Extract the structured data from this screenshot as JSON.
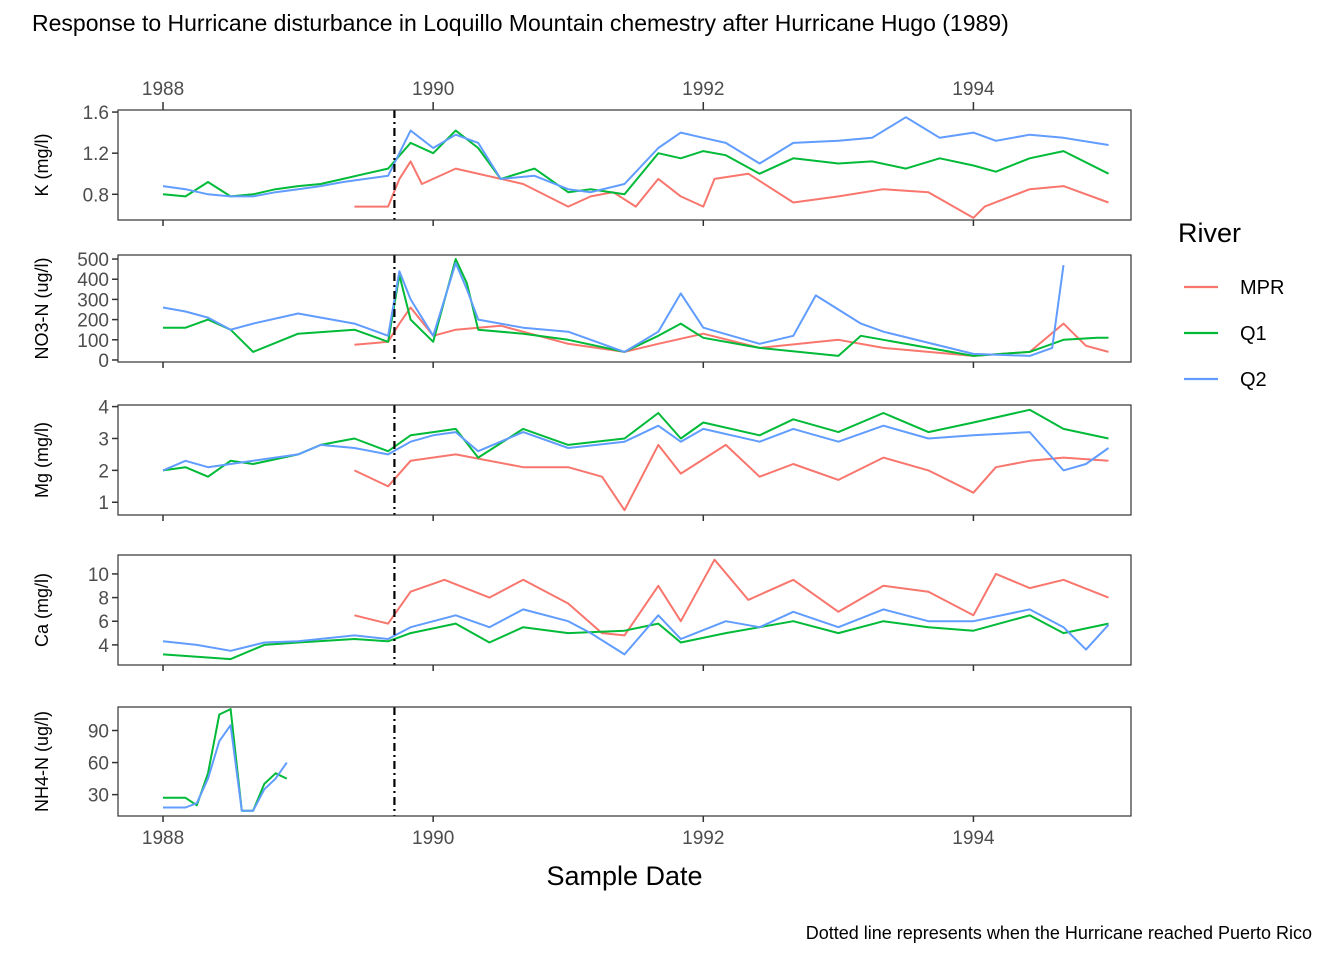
{
  "title": "Response to Hurricane disturbance in Loquillo Mountain chemestry after Hurricane Hugo (1989)",
  "caption": "Dotted line represents when the Hurricane reached Puerto Rico",
  "chart_data": {
    "type": "line",
    "xlabel": "Sample Date",
    "x_ticks": [
      "1988",
      "1990",
      "1992",
      "1994"
    ],
    "xlim": [
      "1987-09",
      "1995-03"
    ],
    "hurricane_date": "1989-09-18",
    "legend": {
      "title": "River",
      "entries": [
        "MPR",
        "Q1",
        "Q2"
      ],
      "position": "right"
    },
    "colors": {
      "MPR": "#F8766D",
      "Q1": "#00BA38",
      "Q2": "#619CFF"
    },
    "grid": false,
    "panels": [
      {
        "ylabel": "K (mg/l)",
        "ylim": [
          0.55,
          1.62
        ],
        "y_ticks": [
          "0.8",
          "1.2",
          "1.6"
        ],
        "series": [
          {
            "name": "MPR",
            "x": [
              "1989-06",
              "1989-09",
              "1989-10",
              "1989-11",
              "1989-12",
              "1990-03",
              "1990-09",
              "1991-01",
              "1991-03",
              "1991-05",
              "1991-07",
              "1991-09",
              "1991-11",
              "1992-01",
              "1992-02",
              "1992-05",
              "1992-09",
              "1993-01",
              "1993-05",
              "1993-09",
              "1994-01",
              "1994-02",
              "1994-06",
              "1994-09",
              "1995-01"
            ],
            "y": [
              0.68,
              0.68,
              0.95,
              1.12,
              0.9,
              1.05,
              0.9,
              0.68,
              0.78,
              0.82,
              0.68,
              0.95,
              0.78,
              0.68,
              0.95,
              1.0,
              0.72,
              0.78,
              0.85,
              0.82,
              0.57,
              0.68,
              0.85,
              0.88,
              0.72
            ]
          },
          {
            "name": "Q1",
            "x": [
              "1988-01",
              "1988-03",
              "1988-05",
              "1988-07",
              "1988-09",
              "1988-11",
              "1989-01",
              "1989-03",
              "1989-05",
              "1989-07",
              "1989-09",
              "1989-11",
              "1990-01",
              "1990-03",
              "1990-05",
              "1990-07",
              "1990-10",
              "1991-01",
              "1991-03",
              "1991-06",
              "1991-09",
              "1991-11",
              "1992-01",
              "1992-03",
              "1992-06",
              "1992-09",
              "1993-01",
              "1993-04",
              "1993-07",
              "1993-10",
              "1994-01",
              "1994-03",
              "1994-06",
              "1994-09",
              "1995-01"
            ],
            "y": [
              0.8,
              0.78,
              0.92,
              0.78,
              0.8,
              0.85,
              0.88,
              0.9,
              0.95,
              1.0,
              1.05,
              1.3,
              1.2,
              1.42,
              1.25,
              0.95,
              1.05,
              0.82,
              0.85,
              0.8,
              1.2,
              1.15,
              1.22,
              1.18,
              1.0,
              1.15,
              1.1,
              1.12,
              1.05,
              1.15,
              1.08,
              1.02,
              1.15,
              1.22,
              1.0
            ]
          },
          {
            "name": "Q2",
            "x": [
              "1988-01",
              "1988-03",
              "1988-05",
              "1988-07",
              "1988-09",
              "1988-11",
              "1989-01",
              "1989-03",
              "1989-05",
              "1989-07",
              "1989-09",
              "1989-11",
              "1990-01",
              "1990-03",
              "1990-05",
              "1990-07",
              "1990-10",
              "1991-01",
              "1991-03",
              "1991-06",
              "1991-09",
              "1991-11",
              "1992-01",
              "1992-03",
              "1992-06",
              "1992-09",
              "1993-01",
              "1993-04",
              "1993-07",
              "1993-10",
              "1994-01",
              "1994-03",
              "1994-06",
              "1994-09",
              "1995-01"
            ],
            "y": [
              0.88,
              0.85,
              0.8,
              0.78,
              0.78,
              0.82,
              0.85,
              0.88,
              0.92,
              0.95,
              0.98,
              1.42,
              1.25,
              1.38,
              1.3,
              0.95,
              0.98,
              0.85,
              0.82,
              0.9,
              1.25,
              1.4,
              1.35,
              1.3,
              1.1,
              1.3,
              1.32,
              1.35,
              1.55,
              1.35,
              1.4,
              1.32,
              1.38,
              1.35,
              1.28
            ]
          }
        ]
      },
      {
        "ylabel": "NO3-N (ug/l)",
        "ylim": [
          -10,
          520
        ],
        "y_ticks": [
          "0",
          "100",
          "200",
          "300",
          "400",
          "500"
        ],
        "series": [
          {
            "name": "MPR",
            "x": [
              "1989-06",
              "1989-09",
              "1989-10",
              "1989-11",
              "1990-01",
              "1990-03",
              "1990-07",
              "1991-01",
              "1991-06",
              "1991-09",
              "1992-01",
              "1992-06",
              "1993-01",
              "1993-05",
              "1994-01",
              "1994-06",
              "1994-09",
              "1994-11",
              "1995-01"
            ],
            "y": [
              75,
              90,
              180,
              260,
              120,
              150,
              170,
              80,
              40,
              80,
              130,
              60,
              100,
              60,
              20,
              40,
              180,
              70,
              40
            ]
          },
          {
            "name": "Q1",
            "x": [
              "1988-01",
              "1988-03",
              "1988-05",
              "1988-07",
              "1988-09",
              "1989-01",
              "1989-06",
              "1989-09",
              "1989-10",
              "1989-11",
              "1990-01",
              "1990-03",
              "1990-04",
              "1990-05",
              "1990-09",
              "1991-01",
              "1991-06",
              "1991-09",
              "1991-11",
              "1992-01",
              "1992-06",
              "1993-01",
              "1993-03",
              "1993-05",
              "1994-01",
              "1994-06",
              "1994-09",
              "1994-12",
              "1995-01"
            ],
            "y": [
              160,
              160,
              200,
              150,
              40,
              130,
              150,
              90,
              420,
              200,
              90,
              500,
              380,
              150,
              130,
              100,
              40,
              120,
              180,
              110,
              60,
              20,
              120,
              100,
              20,
              40,
              100,
              110,
              110
            ]
          },
          {
            "name": "Q2",
            "x": [
              "1988-01",
              "1988-03",
              "1988-05",
              "1988-07",
              "1988-09",
              "1989-01",
              "1989-06",
              "1989-09",
              "1989-10",
              "1989-11",
              "1990-01",
              "1990-03",
              "1990-04",
              "1990-05",
              "1990-09",
              "1991-01",
              "1991-06",
              "1991-09",
              "1991-11",
              "1992-01",
              "1992-06",
              "1992-09",
              "1992-11",
              "1993-03",
              "1993-05",
              "1994-01",
              "1994-06",
              "1994-08",
              "1994-09"
            ],
            "y": [
              260,
              240,
              210,
              150,
              180,
              230,
              180,
              120,
              440,
              300,
              120,
              480,
              350,
              200,
              160,
              140,
              40,
              140,
              330,
              160,
              80,
              120,
              320,
              180,
              140,
              30,
              20,
              60,
              470
            ]
          }
        ]
      },
      {
        "ylabel": "Mg (mg/l)",
        "ylim": [
          0.6,
          4.05
        ],
        "y_ticks": [
          "1",
          "2",
          "3",
          "4"
        ],
        "series": [
          {
            "name": "MPR",
            "x": [
              "1989-06",
              "1989-09",
              "1989-11",
              "1990-03",
              "1990-09",
              "1991-01",
              "1991-04",
              "1991-06",
              "1991-09",
              "1991-11",
              "1992-03",
              "1992-06",
              "1992-09",
              "1993-01",
              "1993-05",
              "1993-09",
              "1994-01",
              "1994-03",
              "1994-06",
              "1994-09",
              "1995-01"
            ],
            "y": [
              2.0,
              1.5,
              2.3,
              2.5,
              2.1,
              2.1,
              1.8,
              0.75,
              2.8,
              1.9,
              2.8,
              1.8,
              2.2,
              1.7,
              2.4,
              2.0,
              1.3,
              2.1,
              2.3,
              2.4,
              2.3
            ]
          },
          {
            "name": "Q1",
            "x": [
              "1988-01",
              "1988-03",
              "1988-05",
              "1988-07",
              "1988-09",
              "1989-01",
              "1989-03",
              "1989-06",
              "1989-09",
              "1989-11",
              "1990-01",
              "1990-03",
              "1990-05",
              "1990-09",
              "1991-01",
              "1991-06",
              "1991-09",
              "1991-11",
              "1992-01",
              "1992-06",
              "1992-09",
              "1993-01",
              "1993-05",
              "1993-09",
              "1994-01",
              "1994-06",
              "1994-09",
              "1995-01"
            ],
            "y": [
              2.0,
              2.1,
              1.8,
              2.3,
              2.2,
              2.5,
              2.8,
              3.0,
              2.6,
              3.1,
              3.2,
              3.3,
              2.4,
              3.3,
              2.8,
              3.0,
              3.8,
              3.0,
              3.5,
              3.1,
              3.6,
              3.2,
              3.8,
              3.2,
              3.5,
              3.9,
              3.3,
              3.0
            ]
          },
          {
            "name": "Q2",
            "x": [
              "1988-01",
              "1988-03",
              "1988-05",
              "1988-07",
              "1988-09",
              "1989-01",
              "1989-03",
              "1989-06",
              "1989-09",
              "1989-11",
              "1990-01",
              "1990-03",
              "1990-05",
              "1990-09",
              "1991-01",
              "1991-06",
              "1991-09",
              "1991-11",
              "1992-01",
              "1992-06",
              "1992-09",
              "1993-01",
              "1993-05",
              "1993-09",
              "1994-01",
              "1994-06",
              "1994-09",
              "1994-11",
              "1995-01"
            ],
            "y": [
              2.0,
              2.3,
              2.1,
              2.2,
              2.3,
              2.5,
              2.8,
              2.7,
              2.5,
              2.9,
              3.1,
              3.2,
              2.6,
              3.2,
              2.7,
              2.9,
              3.4,
              2.9,
              3.3,
              2.9,
              3.3,
              2.9,
              3.4,
              3.0,
              3.1,
              3.2,
              2.0,
              2.2,
              2.7
            ]
          }
        ]
      },
      {
        "ylabel": "Ca (mg/l)",
        "ylim": [
          2.3,
          11.6
        ],
        "y_ticks": [
          "4",
          "6",
          "8",
          "10"
        ],
        "series": [
          {
            "name": "MPR",
            "x": [
              "1989-06",
              "1989-09",
              "1989-11",
              "1990-02",
              "1990-06",
              "1990-09",
              "1991-01",
              "1991-04",
              "1991-06",
              "1991-09",
              "1991-11",
              "1992-02",
              "1992-05",
              "1992-09",
              "1993-01",
              "1993-05",
              "1993-09",
              "1994-01",
              "1994-03",
              "1994-06",
              "1994-09",
              "1995-01"
            ],
            "y": [
              6.5,
              5.8,
              8.5,
              9.5,
              8.0,
              9.5,
              7.5,
              5.0,
              4.8,
              9.0,
              6.0,
              11.2,
              7.8,
              9.5,
              6.8,
              9.0,
              8.5,
              6.5,
              10.0,
              8.8,
              9.5,
              8.0
            ]
          },
          {
            "name": "Q1",
            "x": [
              "1988-01",
              "1988-04",
              "1988-07",
              "1988-10",
              "1989-01",
              "1989-06",
              "1989-09",
              "1989-11",
              "1990-03",
              "1990-06",
              "1990-09",
              "1991-01",
              "1991-06",
              "1991-09",
              "1991-11",
              "1992-03",
              "1992-06",
              "1992-09",
              "1993-01",
              "1993-05",
              "1993-09",
              "1994-01",
              "1994-06",
              "1994-09",
              "1995-01"
            ],
            "y": [
              3.2,
              3.0,
              2.8,
              4.0,
              4.2,
              4.5,
              4.3,
              5.0,
              5.8,
              4.2,
              5.5,
              5.0,
              5.2,
              5.8,
              4.2,
              5.0,
              5.5,
              6.0,
              5.0,
              6.0,
              5.5,
              5.2,
              6.5,
              5.0,
              5.8
            ]
          },
          {
            "name": "Q2",
            "x": [
              "1988-01",
              "1988-04",
              "1988-07",
              "1988-10",
              "1989-01",
              "1989-06",
              "1989-09",
              "1989-11",
              "1990-03",
              "1990-06",
              "1990-09",
              "1991-01",
              "1991-03",
              "1991-06",
              "1991-09",
              "1991-11",
              "1992-03",
              "1992-06",
              "1992-09",
              "1993-01",
              "1993-05",
              "1993-09",
              "1994-01",
              "1994-06",
              "1994-09",
              "1994-11",
              "1995-01"
            ],
            "y": [
              4.3,
              4.0,
              3.5,
              4.2,
              4.3,
              4.8,
              4.5,
              5.5,
              6.5,
              5.5,
              7.0,
              6.0,
              5.0,
              3.2,
              6.5,
              4.5,
              6.0,
              5.5,
              6.8,
              5.5,
              7.0,
              6.0,
              6.0,
              7.0,
              5.5,
              3.6,
              5.7
            ]
          }
        ]
      },
      {
        "ylabel": "NH4-N (ug/l)",
        "ylim": [
          10,
          112
        ],
        "y_ticks": [
          "30",
          "60",
          "90"
        ],
        "series": [
          {
            "name": "Q1",
            "x": [
              "1988-01",
              "1988-03",
              "1988-04",
              "1988-05",
              "1988-06",
              "1988-07",
              "1988-08",
              "1988-09",
              "1988-10",
              "1988-11",
              "1988-12"
            ],
            "y": [
              27,
              27,
              20,
              50,
              105,
              110,
              15,
              15,
              40,
              50,
              45
            ]
          },
          {
            "name": "Q2",
            "x": [
              "1988-01",
              "1988-03",
              "1988-04",
              "1988-05",
              "1988-06",
              "1988-07",
              "1988-08",
              "1988-09",
              "1988-10",
              "1988-11",
              "1988-12"
            ],
            "y": [
              18,
              18,
              22,
              45,
              80,
              95,
              15,
              15,
              35,
              45,
              60
            ]
          }
        ]
      }
    ]
  }
}
